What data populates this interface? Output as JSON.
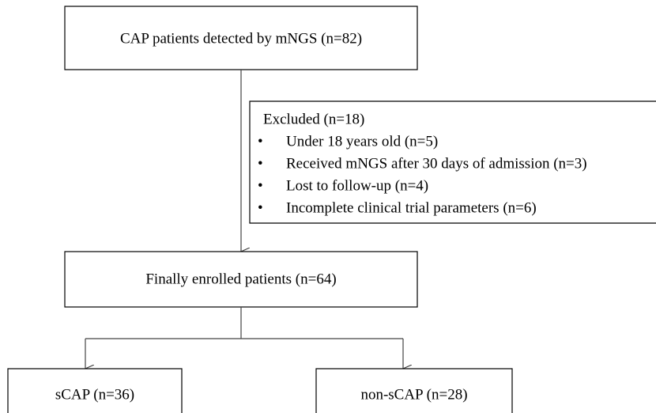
{
  "nodes": [
    {
      "label": "CAP patients detected by mNGS (n=82)"
    },
    {
      "label": "Finally enrolled patients (n=64)"
    },
    {
      "label": "sCAP (n=36)"
    },
    {
      "label": "non-sCAP (n=28)"
    }
  ],
  "excluded": {
    "title": "Excluded (n=18)",
    "items": [
      "Under 18 years old (n=5)",
      "Received mNGS after 30 days of admission (n=3)",
      "Lost to follow-up (n=4)",
      "Incomplete clinical trial parameters (n=6)"
    ]
  }
}
